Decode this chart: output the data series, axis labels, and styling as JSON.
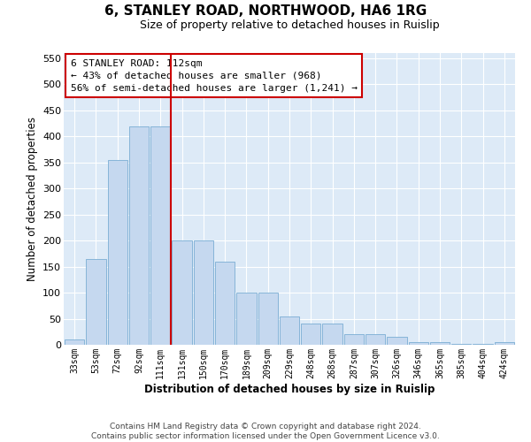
{
  "title": "6, STANLEY ROAD, NORTHWOOD, HA6 1RG",
  "subtitle": "Size of property relative to detached houses in Ruislip",
  "xlabel": "Distribution of detached houses by size in Ruislip",
  "ylabel": "Number of detached properties",
  "categories": [
    "33sqm",
    "53sqm",
    "72sqm",
    "92sqm",
    "111sqm",
    "131sqm",
    "150sqm",
    "170sqm",
    "189sqm",
    "209sqm",
    "229sqm",
    "248sqm",
    "268sqm",
    "287sqm",
    "307sqm",
    "326sqm",
    "346sqm",
    "365sqm",
    "385sqm",
    "404sqm",
    "424sqm"
  ],
  "values": [
    10,
    165,
    355,
    420,
    420,
    200,
    200,
    160,
    100,
    100,
    55,
    40,
    40,
    20,
    20,
    15,
    5,
    5,
    2,
    2,
    5
  ],
  "bar_color": "#c5d8ef",
  "bar_edge_color": "#7aadd4",
  "red_line_x": 4.5,
  "red_line_color": "#cc0000",
  "annotation_line1": "6 STANLEY ROAD: 112sqm",
  "annotation_line2": "← 43% of detached houses are smaller (968)",
  "annotation_line3": "56% of semi-detached houses are larger (1,241) →",
  "annotation_box_facecolor": "#ffffff",
  "annotation_box_edgecolor": "#cc0000",
  "ylim_max": 560,
  "yticks": [
    0,
    50,
    100,
    150,
    200,
    250,
    300,
    350,
    400,
    450,
    500,
    550
  ],
  "bg_color": "#ddeaf7",
  "grid_color": "#ffffff",
  "footer_line1": "Contains HM Land Registry data © Crown copyright and database right 2024.",
  "footer_line2": "Contains public sector information licensed under the Open Government Licence v3.0."
}
